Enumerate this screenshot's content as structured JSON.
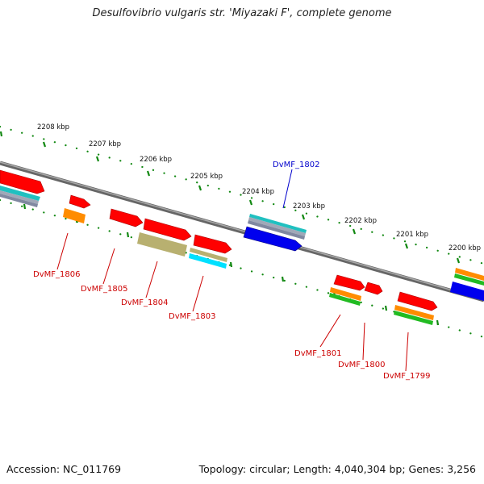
{
  "title": "Desulfovibrio vulgaris str. 'Miyazaki F', complete genome",
  "accession": "Accession: NC_011769",
  "summary": "Topology: circular; Length: 4,040,304 bp; Genes: 3,256",
  "kbp_ticks": [
    "2208 kbp",
    "2207 kbp",
    "2206 kbp",
    "2205 kbp",
    "2204 kbp",
    "2203 kbp",
    "2202 kbp",
    "2201 kbp",
    "2200 kbp"
  ],
  "gene_labels": [
    {
      "text": "DvMF_1806",
      "color": "#cc0000"
    },
    {
      "text": "DvMF_1805",
      "color": "#cc0000"
    },
    {
      "text": "DvMF_1804",
      "color": "#cc0000"
    },
    {
      "text": "DvMF_1803",
      "color": "#cc0000"
    },
    {
      "text": "DvMF_1802",
      "color": "#0000cc"
    },
    {
      "text": "DvMF_1801",
      "color": "#cc0000"
    },
    {
      "text": "DvMF_1800",
      "color": "#cc0000"
    },
    {
      "text": "DvMF_1799",
      "color": "#cc0000"
    }
  ],
  "colors": {
    "cds": "#ff0000",
    "blast_orange": "#ff8c00",
    "blast_teal": "#20c0c0",
    "blast_gray": "#a0a8b8",
    "blast_olive": "#b8b070",
    "blast_cyan": "#00e0ff",
    "blast_green": "#22bb22",
    "reverse_blue": "#0000ee",
    "backbone": "#808080",
    "tick_green": "#118811"
  }
}
